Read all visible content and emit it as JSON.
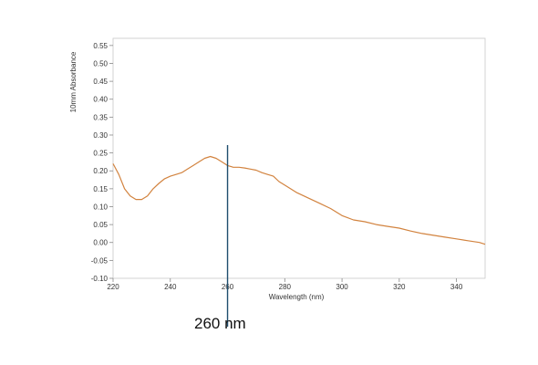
{
  "chart_data": {
    "type": "line",
    "title": "",
    "xlabel": "Wavelength (nm)",
    "ylabel": "10mm Absorbance",
    "xlim": [
      220,
      350
    ],
    "ylim": [
      -0.1,
      0.57
    ],
    "grid": false,
    "legend": "none",
    "x_ticks": [
      220,
      240,
      260,
      280,
      300,
      320,
      340
    ],
    "x_tick_labels": [
      "220",
      "240",
      "260",
      "280",
      "300",
      "320",
      "340"
    ],
    "y_ticks": [
      -0.1,
      -0.05,
      0.0,
      0.05,
      0.1,
      0.15,
      0.2,
      0.25,
      0.3,
      0.35,
      0.4,
      0.45,
      0.5,
      0.55
    ],
    "y_tick_labels": [
      "-0.10",
      "-0.05",
      "0.00",
      "0.05",
      "0.10",
      "0.15",
      "0.20",
      "0.25",
      "0.30",
      "0.35",
      "0.40",
      "0.45",
      "0.50",
      "0.55"
    ],
    "series": [
      {
        "color": "#d2833f",
        "x": [
          220,
          222,
          224,
          226,
          228,
          230,
          232,
          234,
          236,
          238,
          240,
          242,
          244,
          246,
          248,
          250,
          252,
          254,
          256,
          258,
          260,
          262,
          264,
          266,
          268,
          270,
          272,
          274,
          276,
          278,
          280,
          284,
          288,
          292,
          296,
          300,
          304,
          308,
          312,
          316,
          320,
          324,
          328,
          332,
          336,
          340,
          344,
          348,
          350
        ],
        "y": [
          0.22,
          0.19,
          0.15,
          0.13,
          0.12,
          0.12,
          0.13,
          0.15,
          0.165,
          0.178,
          0.185,
          0.19,
          0.195,
          0.205,
          0.215,
          0.225,
          0.235,
          0.24,
          0.235,
          0.225,
          0.215,
          0.21,
          0.21,
          0.208,
          0.205,
          0.202,
          0.195,
          0.19,
          0.185,
          0.17,
          0.16,
          0.14,
          0.125,
          0.11,
          0.095,
          0.075,
          0.063,
          0.058,
          0.05,
          0.045,
          0.04,
          0.032,
          0.025,
          0.02,
          0.015,
          0.01,
          0.005,
          0.0,
          -0.005
        ]
      }
    ],
    "marker_line": {
      "x": 260,
      "color": "#1f4e6e"
    },
    "annotation": {
      "text": "260 nm"
    }
  }
}
